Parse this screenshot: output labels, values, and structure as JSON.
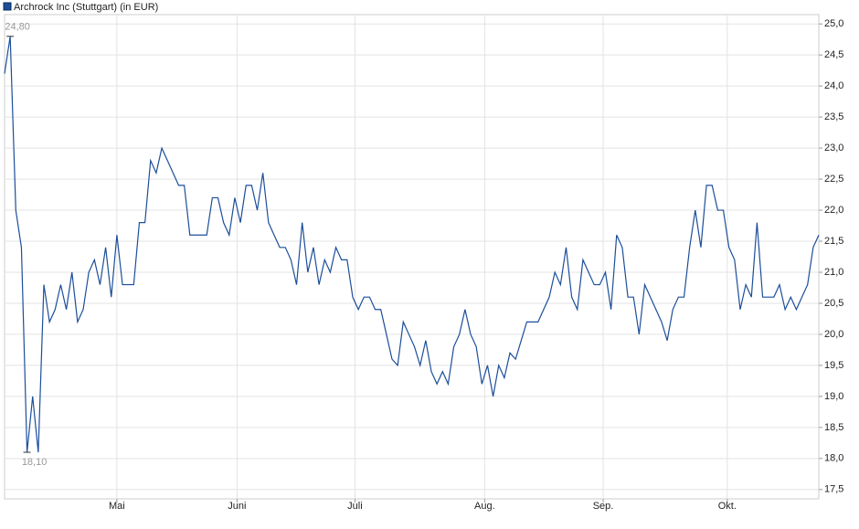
{
  "chart_data": {
    "type": "line",
    "series": [
      {
        "name": "Archrock Inc (Stuttgart) (in EUR)",
        "color": "#1c4e9a",
        "values": [
          24.2,
          24.8,
          22.0,
          21.4,
          18.1,
          19.0,
          18.1,
          20.8,
          20.2,
          20.4,
          20.8,
          20.4,
          21.0,
          20.2,
          20.4,
          21.0,
          21.2,
          20.8,
          21.4,
          20.6,
          21.6,
          20.8,
          20.8,
          20.8,
          21.8,
          21.8,
          22.8,
          22.6,
          23.0,
          22.8,
          22.6,
          22.4,
          22.4,
          21.6,
          21.6,
          21.6,
          21.6,
          22.2,
          22.2,
          21.8,
          21.6,
          22.2,
          21.8,
          22.4,
          22.4,
          22.0,
          22.6,
          21.8,
          21.6,
          21.4,
          21.4,
          21.2,
          20.8,
          21.8,
          21.0,
          21.4,
          20.8,
          21.2,
          21.0,
          21.4,
          21.2,
          21.2,
          20.6,
          20.4,
          20.6,
          20.6,
          20.4,
          20.4,
          20.0,
          19.6,
          19.5,
          20.2,
          20.0,
          19.8,
          19.5,
          19.9,
          19.4,
          19.2,
          19.4,
          19.2,
          19.8,
          20.0,
          20.4,
          20.0,
          19.8,
          19.2,
          19.5,
          19.0,
          19.5,
          19.3,
          19.7,
          19.6,
          19.9,
          20.2,
          20.2,
          20.2,
          20.4,
          20.6,
          21.0,
          20.8,
          21.4,
          20.6,
          20.4,
          21.2,
          21.0,
          20.8,
          20.8,
          21.0,
          20.4,
          21.6,
          21.4,
          20.6,
          20.6,
          20.0,
          20.8,
          20.6,
          20.4,
          20.2,
          19.9,
          20.4,
          20.6,
          20.6,
          21.4,
          22.0,
          21.4,
          22.4,
          22.4,
          22.0,
          22.0,
          21.4,
          21.2,
          20.4,
          20.8,
          20.6,
          21.8,
          20.6,
          20.6,
          20.6,
          20.8,
          20.4,
          20.6,
          20.4,
          20.6,
          20.8,
          21.4,
          21.6
        ]
      }
    ],
    "xlim": [
      0,
      145
    ],
    "xticks": [
      {
        "value": 20,
        "label": "Mai"
      },
      {
        "value": 41.4,
        "label": "Juni"
      },
      {
        "value": 62.4,
        "label": "Juli"
      },
      {
        "value": 85.5,
        "label": "Aug."
      },
      {
        "value": 106.6,
        "label": "Sep."
      },
      {
        "value": 128.7,
        "label": "Okt."
      }
    ],
    "ylim": [
      17.35,
      25.15
    ],
    "yticks": [
      {
        "value": 17.5,
        "label": "17,5"
      },
      {
        "value": 18,
        "label": "18,0"
      },
      {
        "value": 18.5,
        "label": "18,5"
      },
      {
        "value": 19,
        "label": "19,0"
      },
      {
        "value": 19.5,
        "label": "19,5"
      },
      {
        "value": 20,
        "label": "20,0"
      },
      {
        "value": 20.5,
        "label": "20,5"
      },
      {
        "value": 21,
        "label": "21,0"
      },
      {
        "value": 21.5,
        "label": "21,5"
      },
      {
        "value": 22,
        "label": "22,0"
      },
      {
        "value": 22.5,
        "label": "22,5"
      },
      {
        "value": 23,
        "label": "23,0"
      },
      {
        "value": 23.5,
        "label": "23,5"
      },
      {
        "value": 24,
        "label": "24,0"
      },
      {
        "value": 24.5,
        "label": "24,5"
      },
      {
        "value": 25,
        "label": "25,0"
      }
    ],
    "grid": true,
    "annotations": [
      {
        "label": "24,80",
        "x": 1,
        "value": 24.8
      },
      {
        "label": "18,10",
        "x": 4,
        "value": 18.1
      }
    ]
  }
}
